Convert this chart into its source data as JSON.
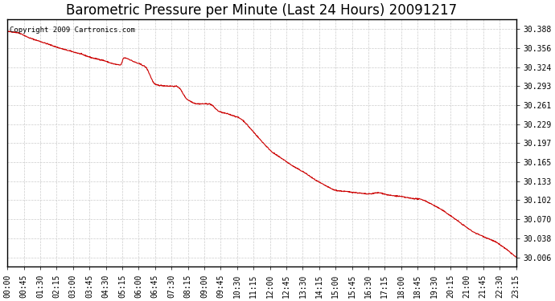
{
  "title": "Barometric Pressure per Minute (Last 24 Hours) 20091217",
  "copyright_text": "Copyright 2009 Cartronics.com",
  "line_color": "#cc0000",
  "background_color": "#ffffff",
  "grid_color": "#cccccc",
  "yticks": [
    30.006,
    30.038,
    30.07,
    30.102,
    30.133,
    30.165,
    30.197,
    30.229,
    30.261,
    30.293,
    30.324,
    30.356,
    30.388
  ],
  "ylim": [
    29.99,
    30.405
  ],
  "xtick_labels": [
    "00:00",
    "00:45",
    "01:30",
    "02:15",
    "03:00",
    "03:45",
    "04:30",
    "05:15",
    "06:00",
    "06:45",
    "07:30",
    "08:15",
    "09:00",
    "09:45",
    "10:30",
    "11:15",
    "12:00",
    "12:45",
    "13:30",
    "14:15",
    "15:00",
    "15:45",
    "16:30",
    "17:15",
    "18:00",
    "18:45",
    "19:30",
    "20:15",
    "21:00",
    "21:45",
    "22:30",
    "23:15"
  ],
  "title_fontsize": 12,
  "copyright_fontsize": 6.5,
  "tick_fontsize": 7,
  "control_points_x": [
    0,
    30,
    60,
    90,
    120,
    150,
    180,
    210,
    240,
    270,
    300,
    320,
    330,
    360,
    390,
    420,
    450,
    480,
    510,
    540,
    570,
    600,
    630,
    660,
    690,
    720,
    750,
    780,
    810,
    840,
    870,
    900,
    930,
    960,
    990,
    1020,
    1050,
    1080,
    1110,
    1140,
    1170,
    1200,
    1230,
    1260,
    1290,
    1320,
    1350,
    1380,
    1410,
    1439
  ],
  "control_points_y": [
    30.384,
    30.382,
    30.374,
    30.368,
    30.362,
    30.356,
    30.351,
    30.346,
    30.34,
    30.336,
    30.33,
    30.328,
    30.34,
    30.333,
    30.325,
    30.295,
    30.293,
    30.292,
    30.27,
    30.263,
    30.263,
    30.25,
    30.245,
    30.238,
    30.22,
    30.2,
    30.182,
    30.17,
    30.158,
    30.148,
    30.136,
    30.126,
    30.118,
    30.116,
    30.114,
    30.112,
    30.114,
    30.11,
    30.108,
    30.105,
    30.103,
    30.095,
    30.085,
    30.073,
    30.06,
    30.048,
    30.04,
    30.032,
    30.02,
    30.006
  ]
}
